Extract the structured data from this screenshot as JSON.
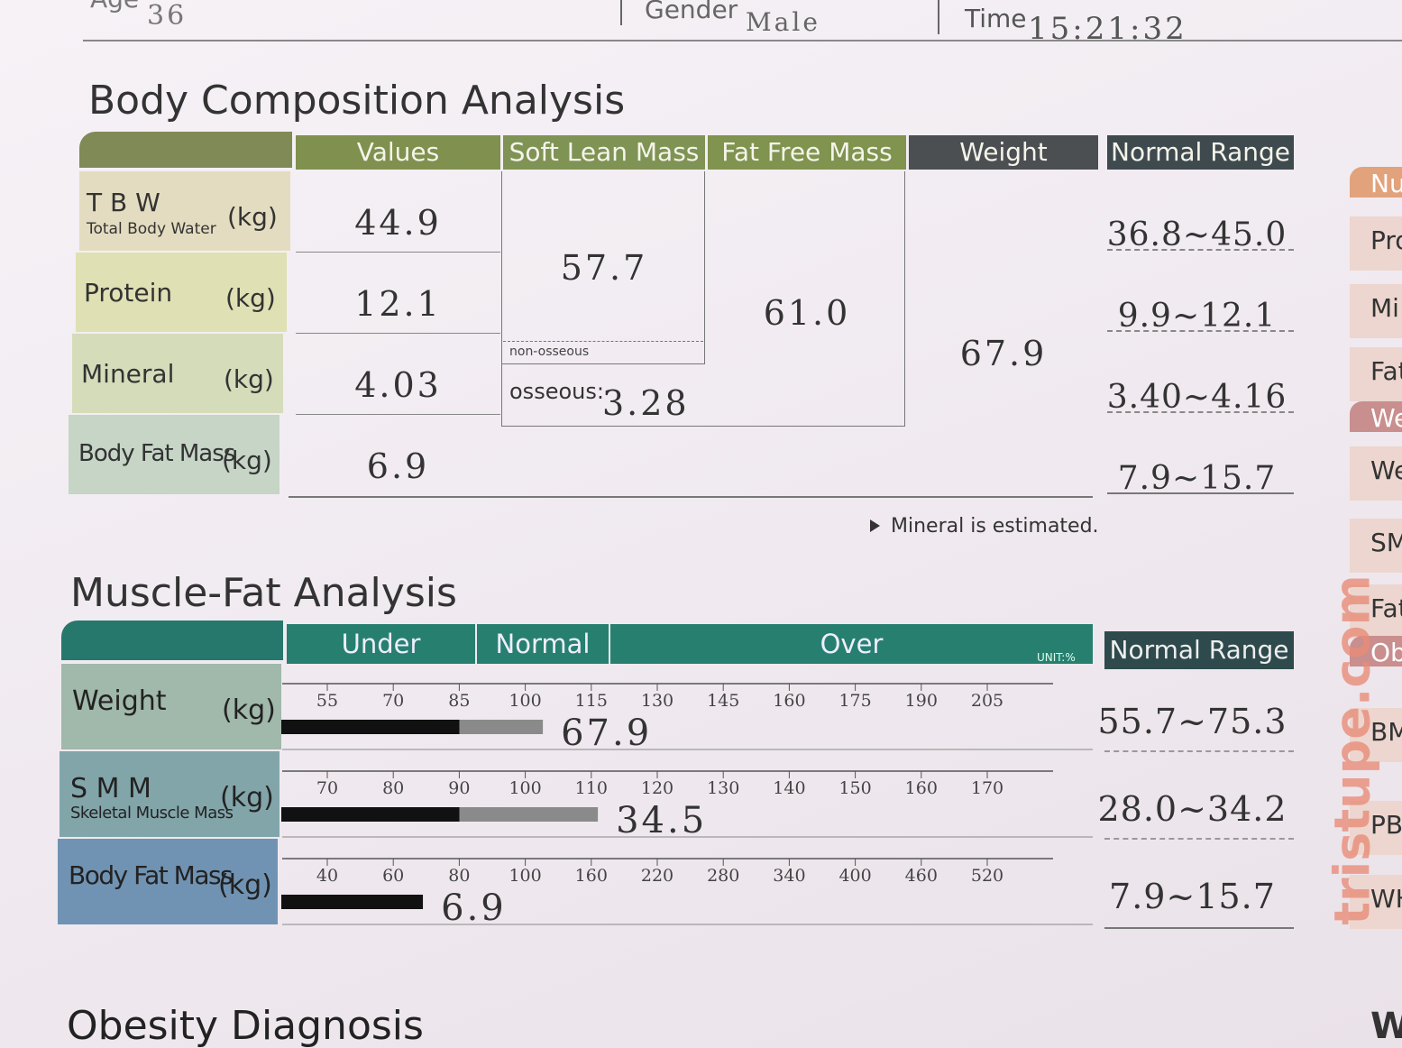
{
  "header": {
    "age_label": "Age",
    "age": "36",
    "gender_label": "Gender",
    "gender": "Male",
    "time_label": "Time",
    "time": "15:21:32"
  },
  "body_composition": {
    "title": "Body Composition Analysis",
    "columns": [
      "Values",
      "Soft Lean Mass",
      "Fat Free Mass",
      "Weight",
      "Normal Range"
    ],
    "rows": [
      {
        "label": "T B W",
        "sublabel": "Total Body Water",
        "unit": "(kg)",
        "value": "44.9",
        "normal_range": "36.8~45.0"
      },
      {
        "label": "Protein",
        "unit": "(kg)",
        "value": "12.1",
        "normal_range": "9.9~12.1"
      },
      {
        "label": "Mineral",
        "unit": "(kg)",
        "value": "4.03",
        "normal_range": "3.40~4.16"
      },
      {
        "label": "Body Fat Mass",
        "unit": "(kg)",
        "value": "6.9",
        "normal_range": "7.9~15.7"
      }
    ],
    "soft_lean_mass": "57.7",
    "non_osseous_label": "non-osseous",
    "osseous_label": "osseous:",
    "osseous_value": "3.28",
    "fat_free_mass": "61.0",
    "weight": "67.9",
    "note": "Mineral is estimated."
  },
  "muscle_fat": {
    "title": "Muscle-Fat Analysis",
    "bands": [
      "Under",
      "Normal",
      "Over"
    ],
    "unit": "UNIT:%",
    "normal_range_header": "Normal Range",
    "rows": [
      {
        "label": "Weight",
        "unit": "(kg)",
        "ticks": [
          55,
          70,
          85,
          100,
          115,
          130,
          145,
          160,
          175,
          190,
          205
        ],
        "percent": 104,
        "value": "67.9",
        "normal_range": "55.7~75.3"
      },
      {
        "label": "S M M",
        "sublabel": "Skeletal Muscle Mass",
        "unit": "(kg)",
        "ticks": [
          70,
          80,
          90,
          100,
          110,
          120,
          130,
          140,
          150,
          160,
          170
        ],
        "percent": 111,
        "value": "34.5",
        "normal_range": "28.0~34.2"
      },
      {
        "label": "Body Fat Mass",
        "unit": "(kg)",
        "ticks": [
          40,
          60,
          80,
          100,
          160,
          220,
          280,
          340,
          400,
          460,
          520
        ],
        "percent": 69,
        "value": "6.9",
        "normal_range": "7.9~15.7"
      }
    ]
  },
  "obesity_title": "Obesity Diagnosis",
  "sidebar": [
    "Nu",
    "Pro",
    "Mi",
    "Fat",
    "We",
    "We",
    "SM",
    "Fat",
    "Ob",
    "BM",
    "PB",
    "WH",
    "We"
  ],
  "watermark": "tristupe.com"
}
